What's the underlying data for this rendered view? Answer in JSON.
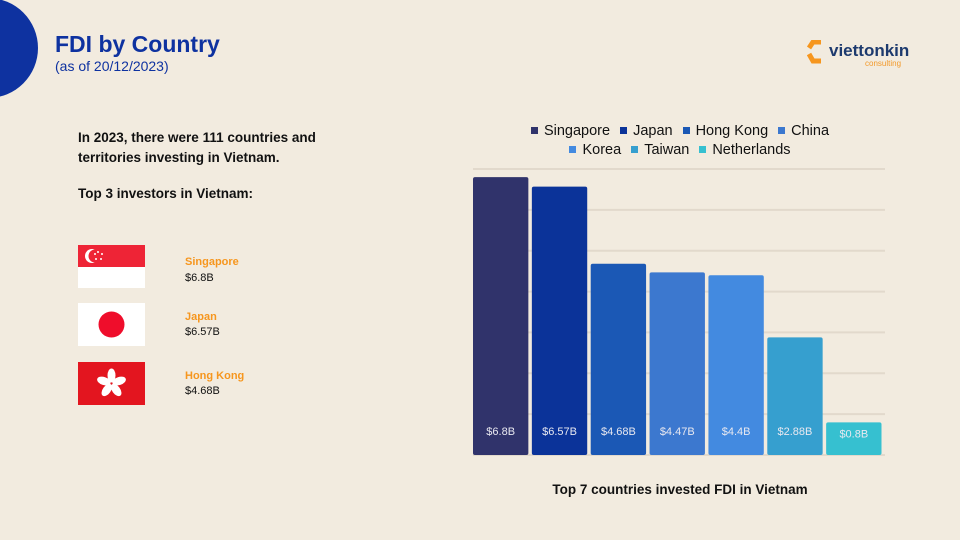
{
  "header": {
    "title": "FDI by Country",
    "subtitle": "(as of 20/12/2023)"
  },
  "logo": {
    "name": "viettonkin",
    "tagline": "consulting"
  },
  "intro": "In 2023, there were 111 countries and territories investing in Vietnam.",
  "top3_heading": "Top 3 investors in Vietnam:",
  "top3": [
    {
      "country": "Singapore",
      "value": "$6.8B",
      "flag": "singapore-flag"
    },
    {
      "country": "Japan",
      "value": "$6.57B",
      "flag": "japan-flag"
    },
    {
      "country": "Hong Kong",
      "value": "$4.68B",
      "flag": "hong-kong-flag"
    }
  ],
  "colors": {
    "brand": "#0e32a0",
    "accent": "#f6961e"
  },
  "chart_data": {
    "type": "bar",
    "title": "Top 7 countries invested FDI in Vietnam",
    "categories": [
      "Singapore",
      "Japan",
      "Hong Kong",
      "China",
      "Korea",
      "Taiwan",
      "Netherlands"
    ],
    "values": [
      6.8,
      6.57,
      4.68,
      4.47,
      4.4,
      2.88,
      0.8
    ],
    "data_labels": [
      "$6.8B",
      "$6.57B",
      "$4.68B",
      "$4.47B",
      "$4.4B",
      "$2.88B",
      "$0.8B"
    ],
    "colors": [
      "#30336b",
      "#0b3399",
      "#1b58b5",
      "#3c78cf",
      "#438ae0",
      "#369fcf",
      "#36c0d0"
    ],
    "ylim": [
      0,
      7
    ],
    "grid": true,
    "legend": "top"
  }
}
